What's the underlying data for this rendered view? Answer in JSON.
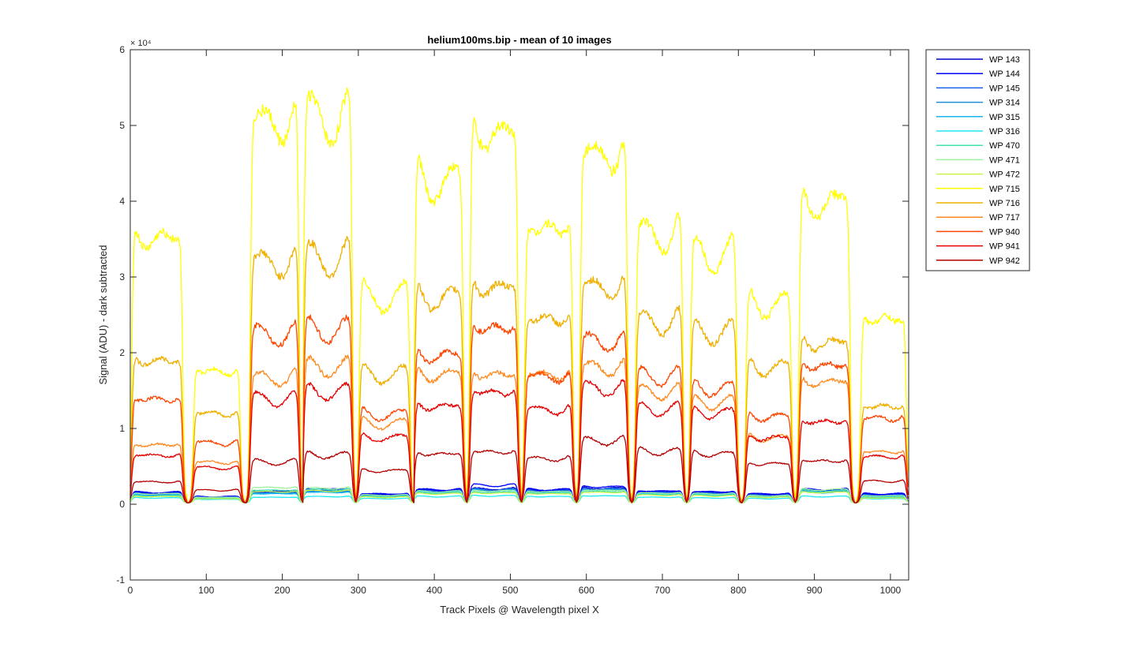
{
  "chart_data": {
    "type": "line",
    "title": "helium100ms.bip - mean of 10 images",
    "xlabel": "Track Pixels @ Wavelength pixel X",
    "ylabel": "Signal (ADU) - dark subtracted",
    "y_exponent_label": "× 10⁴",
    "y_scale": 10000,
    "xlim": [
      0,
      1024
    ],
    "ylim": [
      -1,
      6
    ],
    "x_ticks": [
      0,
      100,
      200,
      300,
      400,
      500,
      600,
      700,
      800,
      900,
      1000
    ],
    "y_ticks": [
      -1,
      0,
      1,
      2,
      3,
      4,
      5,
      6
    ],
    "grid": false,
    "legend_position": "outside-top-right",
    "tracks": [
      {
        "start": 1,
        "end": 70
      },
      {
        "start": 82,
        "end": 146
      },
      {
        "start": 157,
        "end": 223
      },
      {
        "start": 227,
        "end": 293
      },
      {
        "start": 300,
        "end": 369
      },
      {
        "start": 373,
        "end": 439
      },
      {
        "start": 446,
        "end": 511
      },
      {
        "start": 518,
        "end": 583
      },
      {
        "start": 591,
        "end": 655
      },
      {
        "start": 664,
        "end": 728
      },
      {
        "start": 736,
        "end": 799
      },
      {
        "start": 809,
        "end": 871
      },
      {
        "start": 879,
        "end": 948
      },
      {
        "start": 960,
        "end": 1022
      }
    ],
    "series": [
      {
        "name": "WP 143",
        "color": "#0000cd",
        "levels": [
          0.16,
          0.1,
          0.18,
          0.2,
          0.14,
          0.2,
          0.22,
          0.2,
          0.23,
          0.18,
          0.17,
          0.14,
          0.2,
          0.14
        ]
      },
      {
        "name": "WP 144",
        "color": "#0000ff",
        "levels": [
          0.17,
          0.11,
          0.19,
          0.22,
          0.15,
          0.21,
          0.27,
          0.21,
          0.25,
          0.19,
          0.18,
          0.15,
          0.21,
          0.15
        ]
      },
      {
        "name": "WP 145",
        "color": "#1560e6",
        "levels": [
          0.15,
          0.1,
          0.17,
          0.19,
          0.13,
          0.19,
          0.21,
          0.19,
          0.22,
          0.17,
          0.16,
          0.13,
          0.19,
          0.13
        ]
      },
      {
        "name": "WP 314",
        "color": "#1e90d8",
        "levels": [
          0.14,
          0.09,
          0.16,
          0.18,
          0.12,
          0.18,
          0.2,
          0.18,
          0.21,
          0.16,
          0.15,
          0.12,
          0.18,
          0.12
        ]
      },
      {
        "name": "WP 315",
        "color": "#17b4f0",
        "levels": [
          0.13,
          0.09,
          0.15,
          0.17,
          0.11,
          0.17,
          0.19,
          0.17,
          0.2,
          0.15,
          0.14,
          0.11,
          0.17,
          0.11
        ]
      },
      {
        "name": "WP 316",
        "color": "#20e8f0",
        "levels": [
          0.09,
          0.07,
          0.1,
          0.11,
          0.08,
          0.11,
          0.12,
          0.11,
          0.12,
          0.1,
          0.09,
          0.08,
          0.11,
          0.08
        ]
      },
      {
        "name": "WP 470",
        "color": "#40e0b0",
        "levels": [
          0.12,
          0.08,
          0.2,
          0.21,
          0.11,
          0.16,
          0.17,
          0.16,
          0.18,
          0.14,
          0.13,
          0.1,
          0.19,
          0.1
        ]
      },
      {
        "name": "WP 471",
        "color": "#a0f0a0",
        "levels": [
          0.15,
          0.1,
          0.24,
          0.23,
          0.13,
          0.18,
          0.19,
          0.18,
          0.2,
          0.16,
          0.15,
          0.12,
          0.21,
          0.12
        ]
      },
      {
        "name": "WP 472",
        "color": "#c8f548",
        "levels": [
          0.11,
          0.08,
          0.18,
          0.19,
          0.1,
          0.15,
          0.16,
          0.15,
          0.17,
          0.13,
          0.12,
          0.1,
          0.17,
          0.09
        ]
      },
      {
        "name": "WP 715",
        "color": "#ffff00",
        "levels": [
          3.8,
          1.9,
          5.45,
          5.5,
          2.95,
          4.6,
          5.3,
          3.95,
          5.0,
          3.85,
          3.55,
          2.85,
          4.3,
          2.65
        ]
      },
      {
        "name": "WP 716",
        "color": "#f0b000",
        "levels": [
          2.05,
          1.3,
          3.45,
          3.5,
          1.85,
          2.95,
          3.1,
          2.65,
          3.1,
          2.6,
          2.45,
          1.95,
          2.3,
          1.4
        ]
      },
      {
        "name": "WP 717",
        "color": "#ff8a20",
        "levels": [
          0.85,
          0.6,
          1.8,
          1.95,
          1.15,
          1.85,
          1.85,
          1.85,
          1.95,
          1.6,
          1.45,
          0.95,
          1.75,
          0.75
        ]
      },
      {
        "name": "WP 940",
        "color": "#ff4500",
        "levels": [
          1.5,
          0.88,
          2.42,
          2.48,
          1.28,
          2.12,
          2.52,
          1.82,
          2.32,
          1.82,
          1.65,
          1.25,
          1.98,
          1.23
        ]
      },
      {
        "name": "WP 941",
        "color": "#e60000",
        "levels": [
          0.7,
          0.52,
          1.5,
          1.6,
          0.95,
          1.4,
          1.6,
          1.35,
          1.65,
          1.35,
          1.3,
          0.95,
          1.18,
          0.68
        ]
      },
      {
        "name": "WP 942",
        "color": "#b40000",
        "levels": [
          0.32,
          0.2,
          0.6,
          0.7,
          0.48,
          0.72,
          0.75,
          0.65,
          0.9,
          0.75,
          0.72,
          0.58,
          0.62,
          0.33
        ]
      }
    ]
  }
}
